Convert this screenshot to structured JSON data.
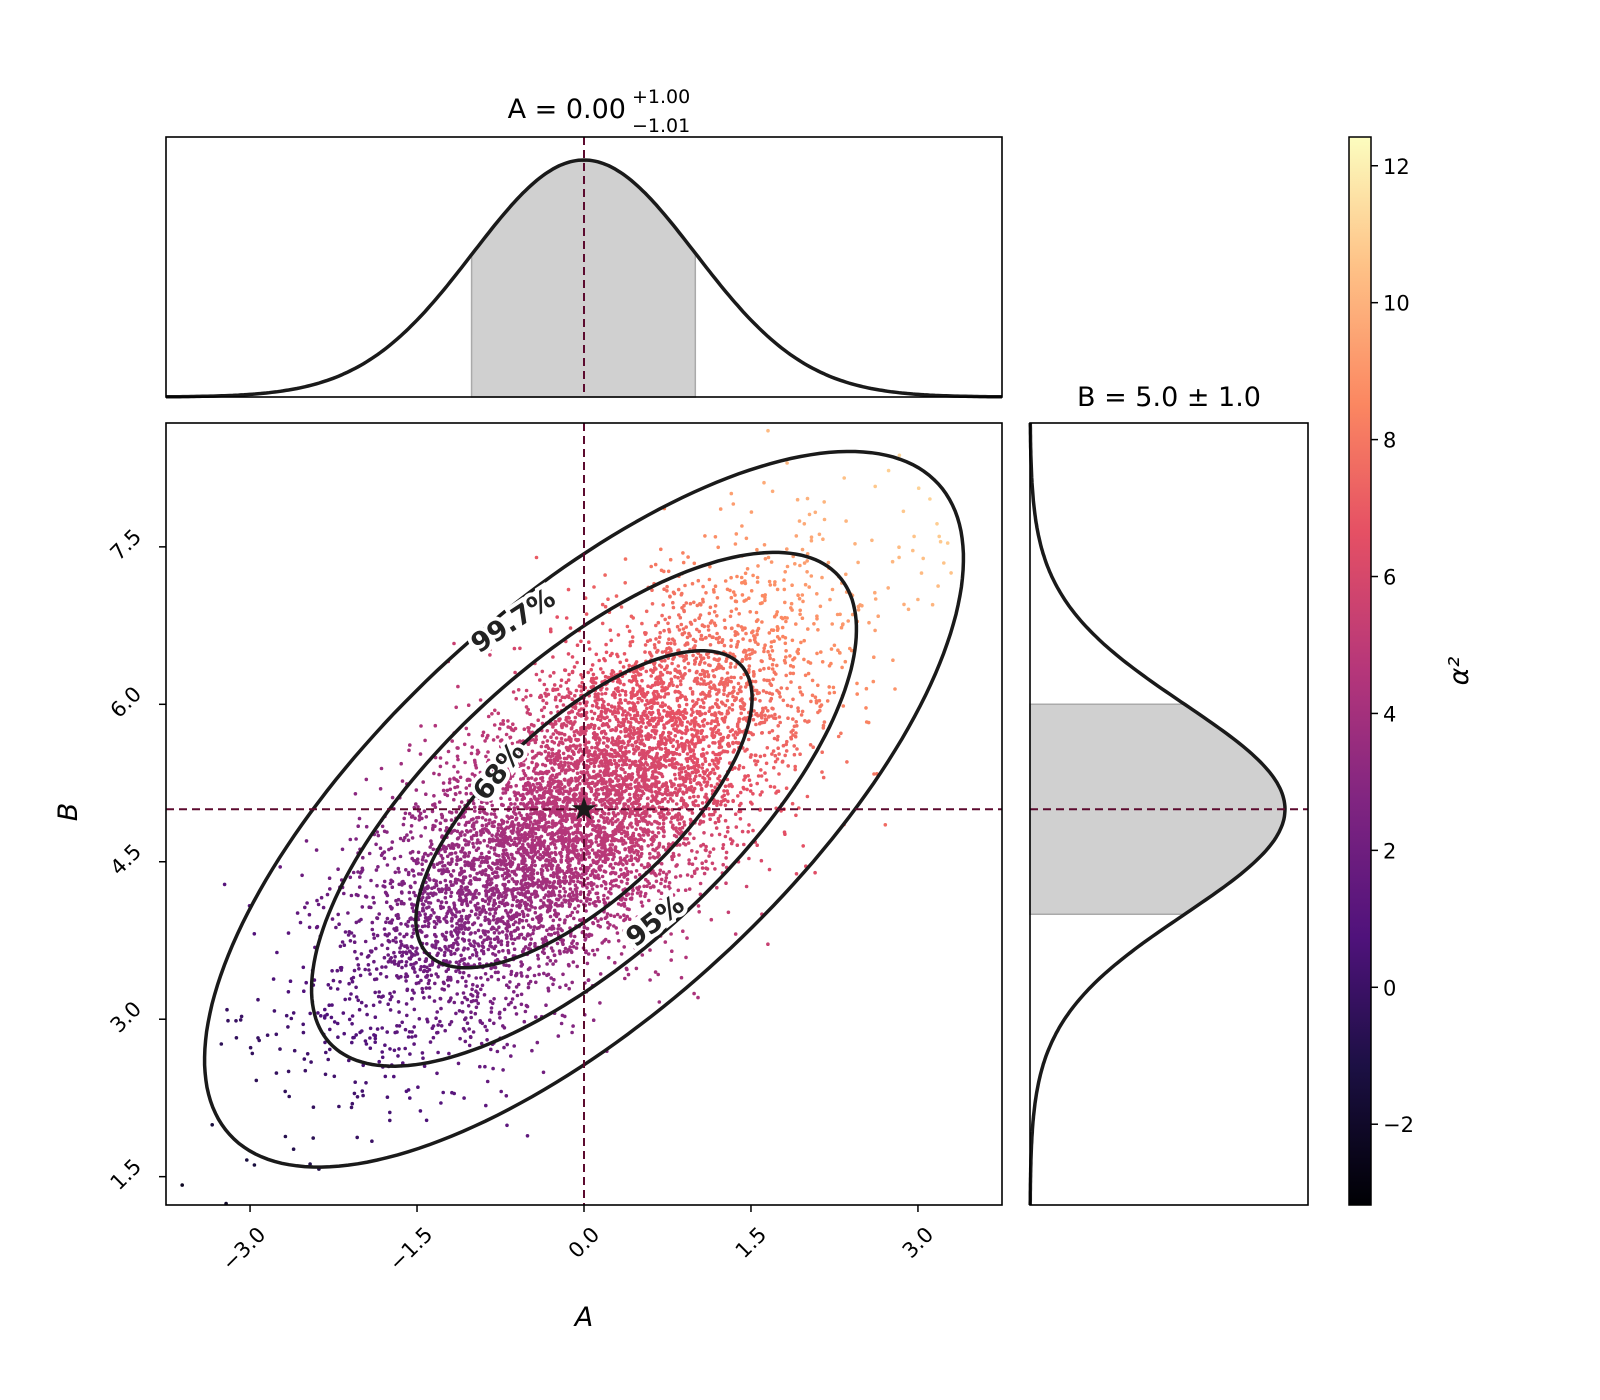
{
  "chart_data": {
    "type": "scatter",
    "main": {
      "xlabel": "A",
      "ylabel": "B",
      "xlim": [
        -3.755,
        3.755
      ],
      "ylim": [
        1.23,
        8.68
      ],
      "xticks": [
        -3.0,
        -1.5,
        0.0,
        1.5,
        3.0
      ],
      "xtick_labels": [
        "−3.0",
        "−1.5",
        "0.0",
        "1.5",
        "3.0"
      ],
      "yticks": [
        1.5,
        3.0,
        4.5,
        6.0,
        7.5
      ],
      "ytick_labels": [
        "1.5",
        "3.0",
        "4.5",
        "6.0",
        "7.5"
      ],
      "samples": {
        "mean": [
          0.0,
          5.0
        ],
        "std": [
          1.0,
          1.0
        ],
        "correlation": 0.7,
        "count": 7000
      },
      "contours": [
        {
          "label": "68%",
          "level": 0.68
        },
        {
          "label": "95%",
          "level": 0.95
        },
        {
          "label": "99.7%",
          "level": 0.997
        }
      ],
      "truth": {
        "A": 0.0,
        "B": 5.0,
        "marker": "star"
      },
      "grid": false
    },
    "marginal_A": {
      "title_main": "A = 0.00",
      "title_sup": "+1.00",
      "title_sub": "−1.01",
      "mean": 0.0,
      "std": 1.0,
      "shaded_interval": [
        -1.01,
        1.0
      ]
    },
    "marginal_B": {
      "title": "B = 5.0 ± 1.0",
      "mean": 5.0,
      "std": 1.0,
      "shaded_interval": [
        4.0,
        6.0
      ]
    },
    "colorbar": {
      "label": "α²",
      "colormap": "magma",
      "range": [
        -3.18,
        12.42
      ],
      "ticks": [
        -2,
        0,
        2,
        4,
        6,
        8,
        10,
        12
      ],
      "tick_labels": [
        "−2",
        "0",
        "2",
        "4",
        "6",
        "8",
        "10",
        "12"
      ]
    },
    "colors": {
      "truth_line": "#5c0a2e",
      "contour": "#1a1a1a",
      "shade": "#d0d0d0"
    }
  }
}
